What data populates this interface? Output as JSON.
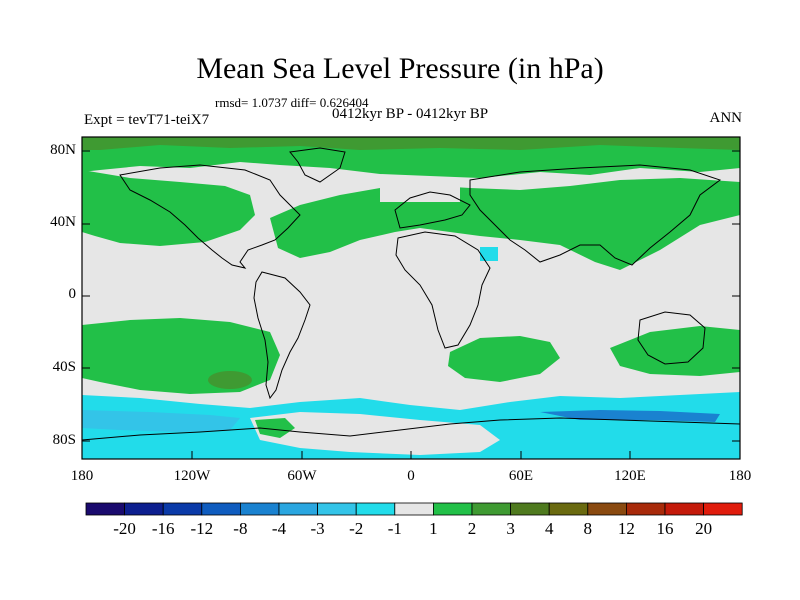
{
  "title": "Mean Sea Level Pressure (in hPa)",
  "stats": "rmsd= 1.0737 diff= 0.626404",
  "experiment": "Expt = tevT71-teiX7",
  "period": "0412kyr BP - 0412kyr BP",
  "season": "ANN",
  "y_ticks": [
    "80N",
    "40N",
    "0",
    "40S",
    "80S"
  ],
  "x_ticks": [
    "180",
    "120W",
    "60W",
    "0",
    "60E",
    "120E",
    "180"
  ],
  "colorbar": {
    "labels": [
      "-20",
      "-16",
      "-12",
      "-8",
      "-4",
      "-3",
      "-2",
      "-1",
      "1",
      "2",
      "3",
      "4",
      "8",
      "12",
      "16",
      "20"
    ],
    "colors": [
      "#1a0a6e",
      "#0d1f8f",
      "#0a3aa8",
      "#0f5cbf",
      "#1a82d0",
      "#2aa6e0",
      "#33c4e8",
      "#22dcea",
      "#e6e6e6",
      "#22c048",
      "#3f9a32",
      "#4f7a1f",
      "#6a6a10",
      "#8a4a10",
      "#a82a0a",
      "#c41a0a",
      "#e01c0c"
    ]
  }
}
